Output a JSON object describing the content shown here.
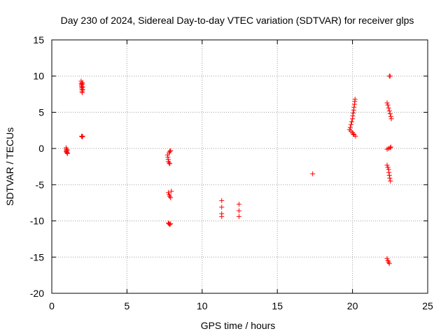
{
  "chart_data": {
    "type": "scatter",
    "title": "Day 230 of 2024, Sidereal Day-to-day VTEC variation (SDTVAR) for receiver glps",
    "xlabel": "GPS time / hours",
    "ylabel": "SDTVAR / TECUs",
    "xlim": [
      0,
      25
    ],
    "ylim": [
      -20,
      15
    ],
    "xticks": [
      0,
      5,
      10,
      15,
      20,
      25
    ],
    "yticks": [
      -20,
      -15,
      -10,
      -5,
      0,
      5,
      10,
      15
    ],
    "xtick_labels": [
      "0",
      "5",
      "10",
      "15",
      "20",
      "25"
    ],
    "ytick_labels": [
      "-20",
      "-15",
      "-10",
      "-5",
      "0",
      "5",
      "10",
      "15"
    ],
    "grid": true,
    "marker": "+",
    "color": "#ff0000",
    "series": [
      {
        "name": "SDTVAR",
        "points": [
          [
            0.95,
            0.1
          ],
          [
            0.97,
            -0.1
          ],
          [
            0.98,
            -0.3
          ],
          [
            1.0,
            -0.5
          ],
          [
            1.02,
            -0.6
          ],
          [
            1.04,
            -0.7
          ],
          [
            0.96,
            -0.4
          ],
          [
            1.03,
            -0.2
          ],
          [
            1.95,
            9.3
          ],
          [
            1.96,
            9.0
          ],
          [
            1.97,
            8.8
          ],
          [
            1.98,
            8.6
          ],
          [
            2.0,
            8.4
          ],
          [
            2.0,
            8.2
          ],
          [
            2.01,
            7.9
          ],
          [
            2.02,
            7.7
          ],
          [
            2.03,
            9.1
          ],
          [
            2.04,
            8.9
          ],
          [
            2.05,
            8.5
          ],
          [
            2.06,
            8.1
          ],
          [
            1.98,
            1.7
          ],
          [
            2.02,
            1.6
          ],
          [
            2.05,
            1.7
          ],
          [
            7.7,
            -0.9
          ],
          [
            7.72,
            -1.2
          ],
          [
            7.74,
            -1.5
          ],
          [
            7.76,
            -1.8
          ],
          [
            7.8,
            -2.0
          ],
          [
            7.85,
            -2.1
          ],
          [
            7.8,
            -0.6
          ],
          [
            7.85,
            -0.4
          ],
          [
            7.9,
            -0.3
          ],
          [
            7.75,
            -6.1
          ],
          [
            7.8,
            -6.4
          ],
          [
            7.85,
            -6.6
          ],
          [
            7.9,
            -6.8
          ],
          [
            7.95,
            -5.9
          ],
          [
            7.75,
            -10.3
          ],
          [
            7.8,
            -10.4
          ],
          [
            7.85,
            -10.5
          ],
          [
            7.9,
            -10.4
          ],
          [
            11.3,
            -7.2
          ],
          [
            11.3,
            -8.1
          ],
          [
            11.3,
            -9.0
          ],
          [
            11.3,
            -9.4
          ],
          [
            12.45,
            -7.7
          ],
          [
            12.45,
            -8.6
          ],
          [
            12.45,
            -9.4
          ],
          [
            17.35,
            -3.5
          ],
          [
            19.8,
            2.6
          ],
          [
            19.85,
            2.9
          ],
          [
            19.9,
            3.3
          ],
          [
            19.95,
            3.7
          ],
          [
            20.0,
            4.1
          ],
          [
            20.02,
            4.5
          ],
          [
            20.05,
            4.9
          ],
          [
            20.08,
            5.3
          ],
          [
            20.1,
            5.7
          ],
          [
            20.13,
            6.1
          ],
          [
            20.15,
            6.5
          ],
          [
            20.17,
            6.8
          ],
          [
            19.9,
            2.4
          ],
          [
            20.0,
            2.2
          ],
          [
            20.05,
            2.0
          ],
          [
            20.1,
            1.9
          ],
          [
            20.2,
            1.7
          ],
          [
            22.3,
            -0.1
          ],
          [
            22.4,
            0.0
          ],
          [
            22.5,
            0.1
          ],
          [
            22.55,
            0.2
          ],
          [
            22.3,
            6.3
          ],
          [
            22.35,
            6.0
          ],
          [
            22.4,
            5.6
          ],
          [
            22.45,
            5.2
          ],
          [
            22.5,
            4.8
          ],
          [
            22.55,
            4.4
          ],
          [
            22.58,
            4.1
          ],
          [
            22.45,
            10.0
          ],
          [
            22.5,
            10.0
          ],
          [
            22.3,
            -2.3
          ],
          [
            22.35,
            -2.6
          ],
          [
            22.4,
            -2.9
          ],
          [
            22.42,
            -3.3
          ],
          [
            22.45,
            -3.7
          ],
          [
            22.48,
            -4.1
          ],
          [
            22.52,
            -4.5
          ],
          [
            22.3,
            -15.2
          ],
          [
            22.35,
            -15.5
          ],
          [
            22.4,
            -15.7
          ],
          [
            22.45,
            -15.9
          ]
        ]
      }
    ]
  }
}
